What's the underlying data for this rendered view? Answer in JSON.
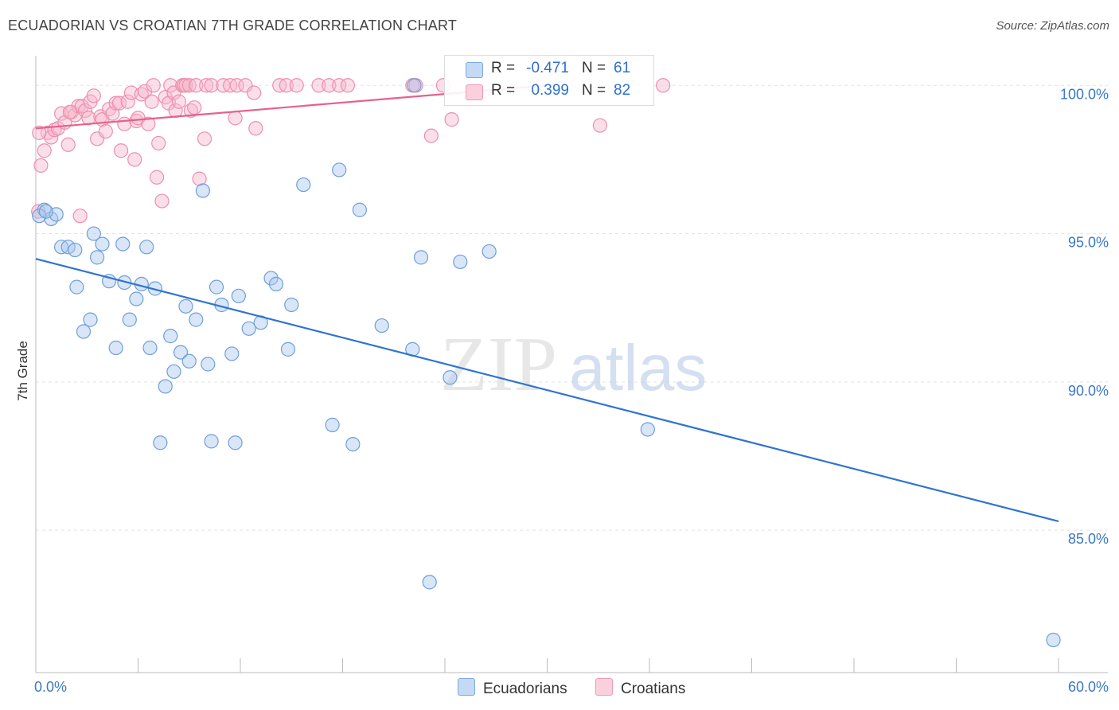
{
  "title": "ECUADORIAN VS CROATIAN 7TH GRADE CORRELATION CHART",
  "source": "Source: ZipAtlas.com",
  "watermark": {
    "zip": "ZIP",
    "atlas": "atlas"
  },
  "legend": {
    "r_label": "R =",
    "n_label": "N =",
    "rows": [
      {
        "series": "Ecuadorians",
        "r": "-0.471",
        "n": "61",
        "color": "#a8c8f0"
      },
      {
        "series": "Croatians",
        "r": "0.399",
        "n": "82",
        "color": "#f7b8cc"
      }
    ]
  },
  "colors": {
    "blue_fill": "#a8c8f0",
    "blue_stroke": "#6f9fd8",
    "blue_line": "#2f74d0",
    "pink_fill": "#f7b8cc",
    "pink_stroke": "#ec8fae",
    "pink_line": "#e8608a",
    "tick_label": "#3a78c8",
    "grid": "#e4e4e4"
  },
  "chart_data": {
    "type": "scatter",
    "title": "ECUADORIAN VS CROATIAN 7TH GRADE CORRELATION CHART",
    "xlabel": "",
    "ylabel": "7th Grade",
    "xlim": [
      0,
      60
    ],
    "ylim": [
      80.2,
      101.0
    ],
    "x_tick_labels": [
      "0.0%",
      "60.0%"
    ],
    "y_ticks": [
      85,
      90,
      95,
      100
    ],
    "y_tick_labels": [
      "85.0%",
      "90.0%",
      "95.0%",
      "100.0%"
    ],
    "grid": true,
    "legend_position": "top-center",
    "series": [
      {
        "name": "Ecuadorians",
        "r": -0.471,
        "n": 61,
        "trend": {
          "x": [
            0,
            60
          ],
          "y": [
            94.15,
            85.3
          ]
        },
        "points": [
          [
            0.5,
            95.8
          ],
          [
            0.9,
            95.5
          ],
          [
            1.2,
            95.65
          ],
          [
            1.5,
            94.55
          ],
          [
            1.9,
            94.55
          ],
          [
            2.3,
            94.45
          ],
          [
            2.4,
            93.2
          ],
          [
            2.8,
            91.7
          ],
          [
            3.2,
            92.1
          ],
          [
            3.4,
            95.0
          ],
          [
            3.6,
            94.2
          ],
          [
            3.9,
            94.65
          ],
          [
            4.3,
            93.4
          ],
          [
            4.7,
            91.15
          ],
          [
            5.1,
            94.65
          ],
          [
            5.2,
            93.35
          ],
          [
            5.5,
            92.1
          ],
          [
            5.9,
            92.8
          ],
          [
            6.2,
            93.3
          ],
          [
            6.5,
            94.55
          ],
          [
            6.7,
            91.15
          ],
          [
            7.0,
            93.15
          ],
          [
            7.3,
            87.95
          ],
          [
            7.6,
            89.85
          ],
          [
            7.9,
            91.55
          ],
          [
            8.1,
            90.35
          ],
          [
            8.5,
            91.0
          ],
          [
            8.8,
            92.55
          ],
          [
            9.0,
            90.7
          ],
          [
            9.4,
            92.1
          ],
          [
            9.8,
            96.45
          ],
          [
            10.1,
            90.6
          ],
          [
            10.3,
            88.0
          ],
          [
            10.6,
            93.2
          ],
          [
            10.9,
            92.6
          ],
          [
            11.5,
            90.95
          ],
          [
            11.7,
            87.95
          ],
          [
            11.9,
            92.9
          ],
          [
            12.5,
            91.8
          ],
          [
            13.2,
            92.0
          ],
          [
            13.8,
            93.5
          ],
          [
            14.1,
            93.3
          ],
          [
            14.8,
            91.1
          ],
          [
            15.0,
            92.6
          ],
          [
            15.7,
            96.65
          ],
          [
            17.4,
            88.55
          ],
          [
            17.8,
            97.15
          ],
          [
            18.6,
            87.9
          ],
          [
            19.0,
            95.8
          ],
          [
            20.3,
            91.9
          ],
          [
            22.1,
            91.1
          ],
          [
            22.2,
            100.0
          ],
          [
            22.6,
            94.2
          ],
          [
            23.1,
            83.25
          ],
          [
            24.3,
            90.15
          ],
          [
            24.9,
            94.05
          ],
          [
            26.6,
            94.4
          ],
          [
            35.9,
            88.4
          ],
          [
            59.7,
            81.3
          ],
          [
            0.2,
            95.6
          ],
          [
            0.6,
            95.75
          ]
        ]
      },
      {
        "name": "Croatians",
        "r": 0.399,
        "n": 82,
        "trend": {
          "x": [
            0,
            30
          ],
          "y": [
            98.55,
            100.0
          ]
        },
        "points": [
          [
            0.3,
            97.3
          ],
          [
            0.5,
            97.8
          ],
          [
            0.7,
            98.4
          ],
          [
            0.9,
            98.25
          ],
          [
            1.1,
            98.5
          ],
          [
            1.3,
            98.55
          ],
          [
            1.5,
            99.05
          ],
          [
            1.7,
            98.75
          ],
          [
            1.9,
            98.0
          ],
          [
            2.1,
            99.1
          ],
          [
            2.3,
            99.0
          ],
          [
            2.5,
            99.3
          ],
          [
            2.6,
            95.6
          ],
          [
            2.7,
            99.3
          ],
          [
            2.9,
            99.15
          ],
          [
            3.1,
            98.9
          ],
          [
            3.2,
            99.45
          ],
          [
            3.4,
            99.65
          ],
          [
            3.6,
            98.2
          ],
          [
            3.8,
            98.95
          ],
          [
            3.9,
            98.85
          ],
          [
            4.1,
            98.45
          ],
          [
            4.3,
            99.2
          ],
          [
            4.5,
            99.05
          ],
          [
            4.7,
            99.4
          ],
          [
            4.9,
            99.4
          ],
          [
            5.0,
            97.8
          ],
          [
            5.2,
            98.7
          ],
          [
            5.4,
            99.45
          ],
          [
            5.6,
            99.75
          ],
          [
            5.8,
            97.5
          ],
          [
            5.9,
            98.8
          ],
          [
            6.0,
            98.9
          ],
          [
            6.2,
            99.7
          ],
          [
            6.4,
            99.8
          ],
          [
            6.6,
            98.7
          ],
          [
            6.8,
            99.45
          ],
          [
            6.9,
            100.0
          ],
          [
            7.1,
            96.9
          ],
          [
            7.2,
            98.05
          ],
          [
            7.4,
            96.1
          ],
          [
            7.6,
            99.6
          ],
          [
            7.8,
            99.4
          ],
          [
            7.9,
            100.0
          ],
          [
            8.1,
            99.75
          ],
          [
            8.2,
            99.15
          ],
          [
            8.4,
            99.45
          ],
          [
            8.6,
            100.0
          ],
          [
            8.7,
            100.0
          ],
          [
            8.8,
            100.0
          ],
          [
            9.0,
            100.0
          ],
          [
            9.1,
            99.15
          ],
          [
            9.3,
            99.25
          ],
          [
            9.4,
            100.0
          ],
          [
            9.6,
            96.85
          ],
          [
            9.9,
            98.2
          ],
          [
            10.0,
            100.0
          ],
          [
            10.3,
            100.0
          ],
          [
            11.0,
            100.0
          ],
          [
            11.4,
            100.0
          ],
          [
            11.7,
            98.9
          ],
          [
            11.8,
            100.0
          ],
          [
            12.3,
            100.0
          ],
          [
            12.8,
            99.75
          ],
          [
            12.9,
            98.55
          ],
          [
            14.3,
            100.0
          ],
          [
            14.7,
            100.0
          ],
          [
            15.3,
            100.0
          ],
          [
            16.6,
            100.0
          ],
          [
            17.2,
            100.0
          ],
          [
            17.8,
            100.0
          ],
          [
            18.3,
            100.0
          ],
          [
            22.1,
            100.0
          ],
          [
            22.3,
            100.0
          ],
          [
            23.2,
            98.3
          ],
          [
            23.9,
            100.0
          ],
          [
            24.4,
            98.85
          ],
          [
            33.1,
            98.65
          ],
          [
            36.8,
            100.0
          ],
          [
            0.15,
            95.75
          ],
          [
            0.2,
            98.4
          ],
          [
            2.0,
            99.1
          ]
        ]
      }
    ]
  }
}
